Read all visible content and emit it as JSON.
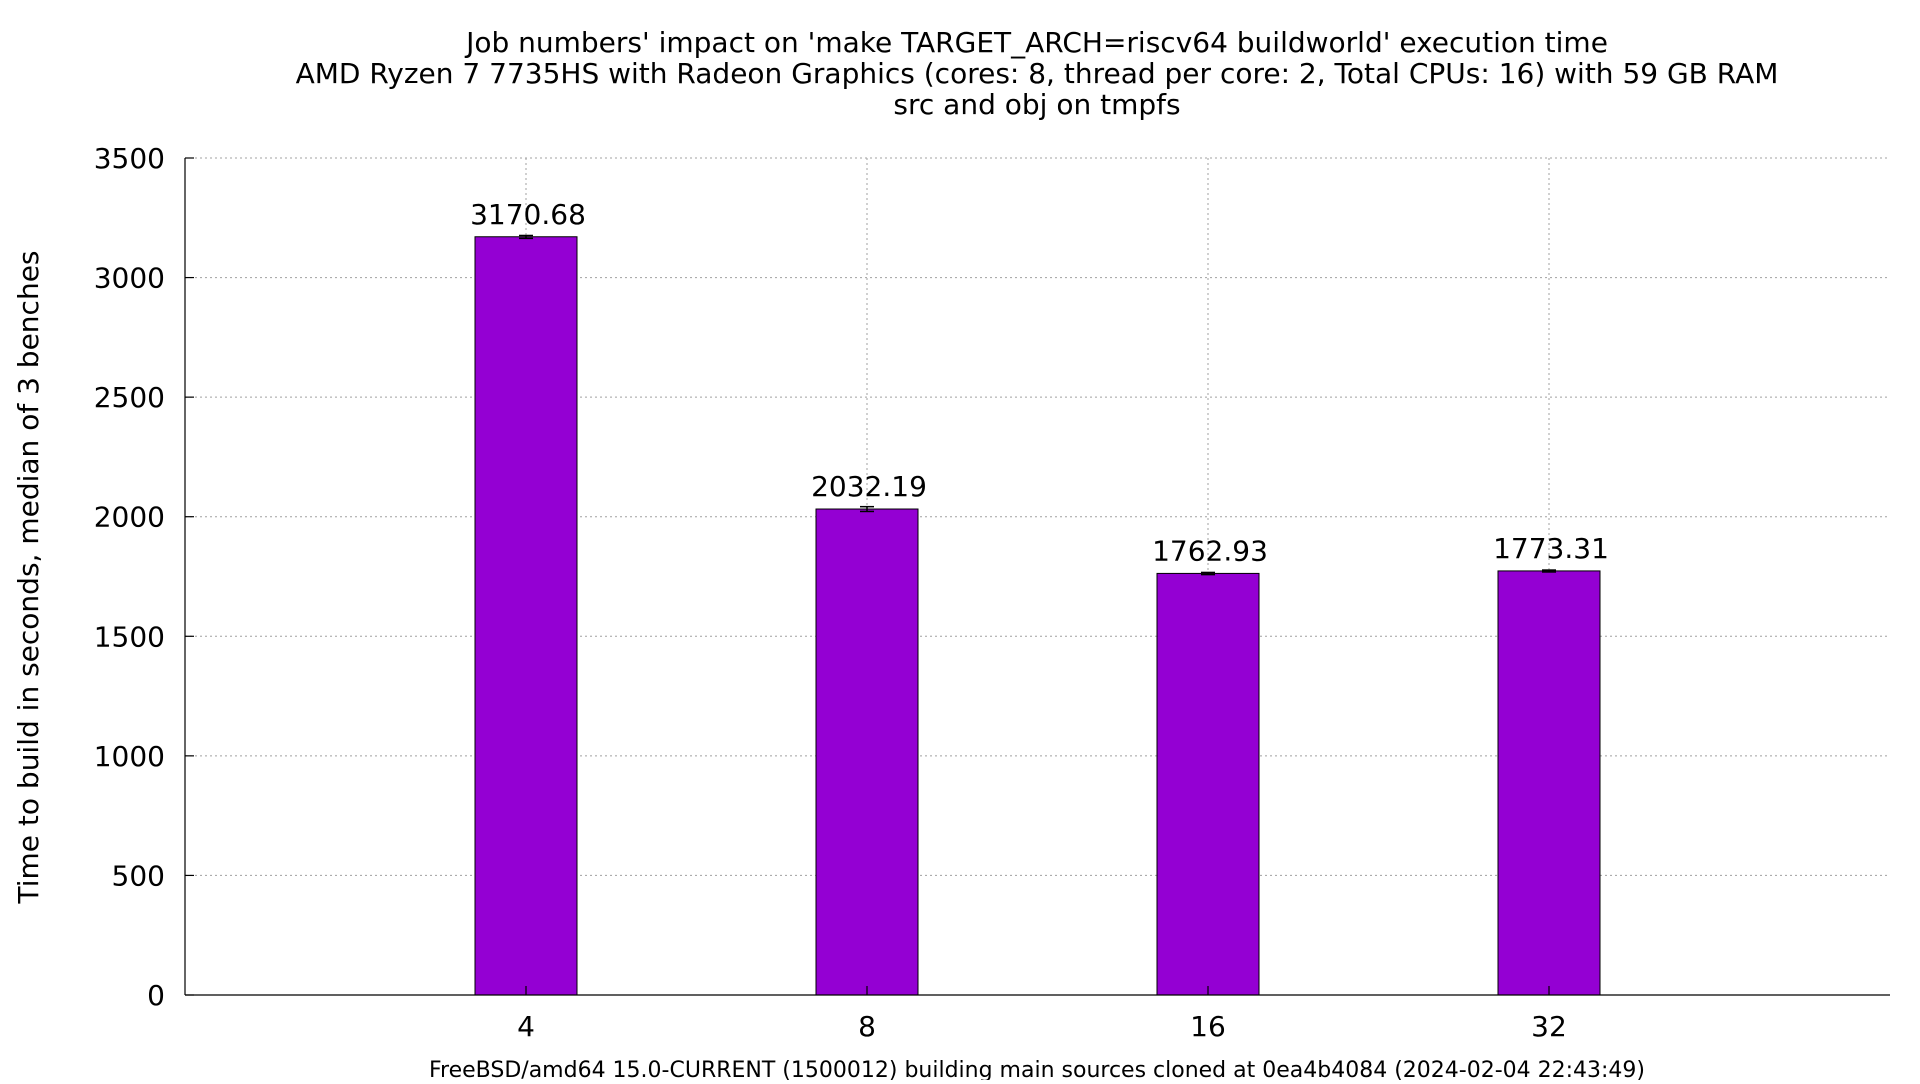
{
  "chart_data": {
    "type": "bar",
    "title_lines": [
      "Job numbers' impact on 'make TARGET_ARCH=riscv64 buildworld' execution time",
      "AMD Ryzen 7 7735HS with Radeon Graphics (cores: 8, thread per core: 2, Total CPUs: 16) with 59 GB RAM",
      "src and obj on tmpfs"
    ],
    "xlabel": "FreeBSD/amd64 15.0-CURRENT (1500012) building main sources cloned at 0ea4b4084 (2024-02-04 22:43:49)",
    "ylabel": "Time to build in seconds, median of 3 benches",
    "categories": [
      "4",
      "8",
      "16",
      "32"
    ],
    "values": [
      3170.68,
      2032.19,
      1762.93,
      1773.31
    ],
    "value_labels": [
      "3170.68",
      "2032.19",
      "1762.93",
      "1773.31"
    ],
    "error_bars": [
      [
        3164,
        3176
      ],
      [
        2022,
        2042
      ],
      [
        1758,
        1767
      ],
      [
        1769,
        1777
      ]
    ],
    "ylim": [
      0,
      3500
    ],
    "yticks": [
      0,
      500,
      1000,
      1500,
      2000,
      2500,
      3000,
      3500
    ],
    "bar_color": "#9400d3",
    "grid": true,
    "legend": false
  }
}
